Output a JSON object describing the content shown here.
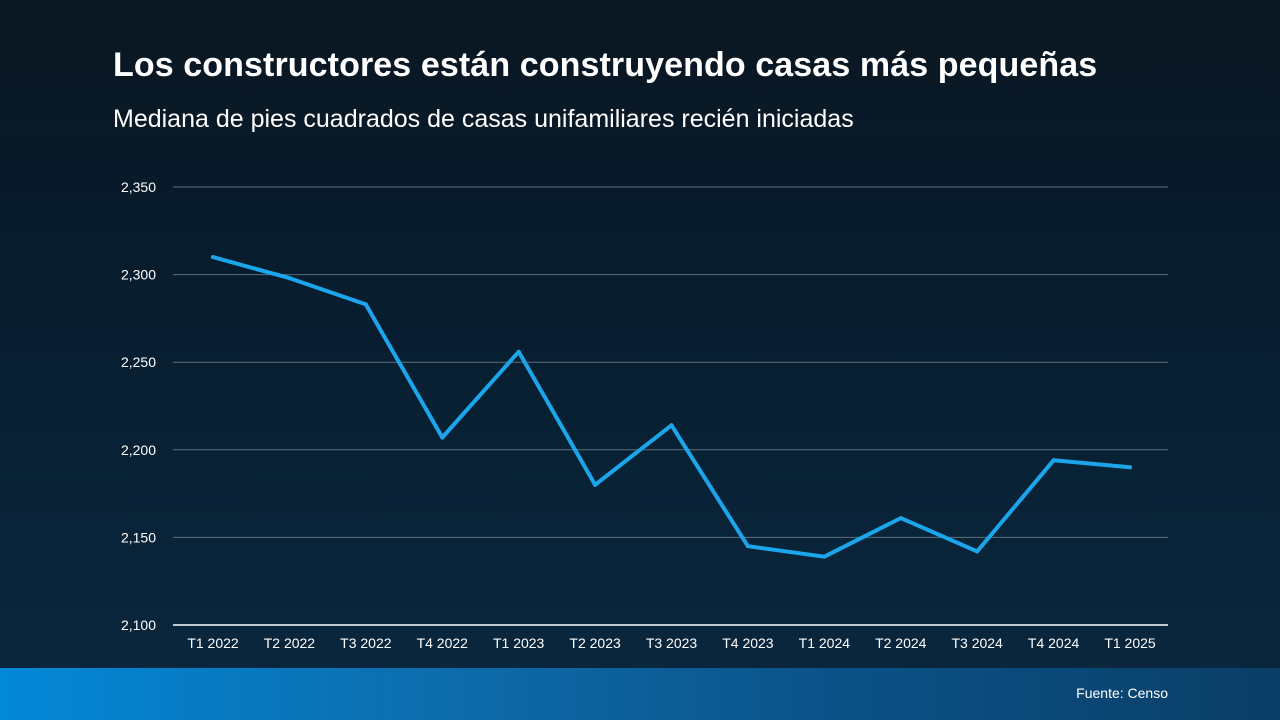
{
  "header": {
    "title": "Los constructores están construyendo casas más pequeñas",
    "subtitle": "Mediana de pies cuadrados de casas unifamiliares recién iniciadas"
  },
  "footer": {
    "source": "Fuente: Censo"
  },
  "colors": {
    "line": "#1ba6ec",
    "grid": "#5b6f80",
    "axis": "#ffffff"
  },
  "chart_data": {
    "type": "line",
    "title": "Los constructores están construyendo casas más pequeñas",
    "subtitle": "Mediana de pies cuadrados de casas unifamiliares recién iniciadas",
    "xlabel": "",
    "ylabel": "",
    "categories": [
      "T1 2022",
      "T2 2022",
      "T3 2022",
      "T4 2022",
      "T1 2023",
      "T2 2023",
      "T3 2023",
      "T4 2023",
      "T1 2024",
      "T2 2024",
      "T3 2024",
      "T4 2024",
      "T1 2025"
    ],
    "values": [
      2310,
      2298,
      2283,
      2207,
      2256,
      2180,
      2214,
      2145,
      2139,
      2161,
      2142,
      2194,
      2190
    ],
    "ylim": [
      2100,
      2350
    ],
    "yticks": [
      2100,
      2150,
      2200,
      2250,
      2300,
      2350
    ],
    "ytick_labels": [
      "2,100",
      "2,150",
      "2,200",
      "2,250",
      "2,300",
      "2,350"
    ],
    "grid": true,
    "legend": "none"
  }
}
